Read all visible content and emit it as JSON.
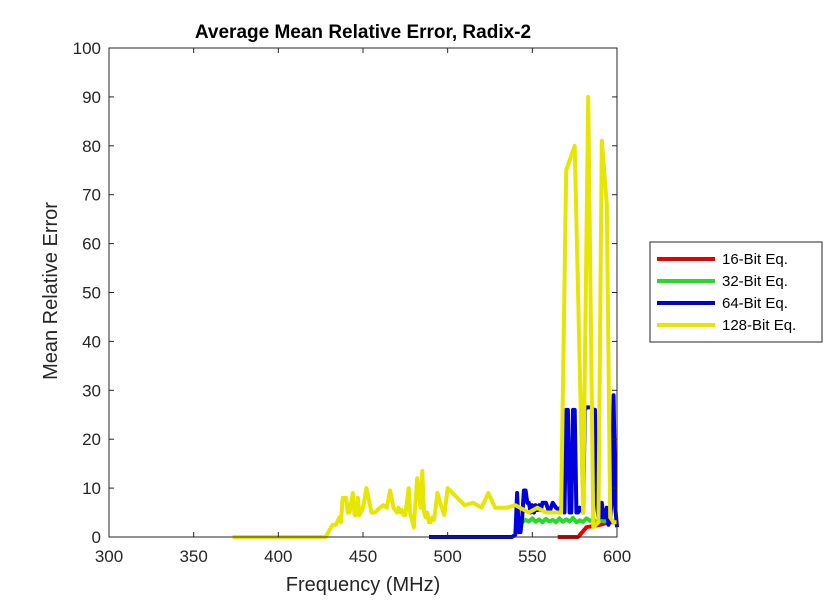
{
  "chart_data": {
    "type": "line",
    "title": "Average Mean Relative Error, Radix-2",
    "xlabel": "Frequency (MHz)",
    "ylabel": "Mean Relative Error",
    "xlim": [
      300,
      600
    ],
    "ylim": [
      0,
      100
    ],
    "xticks": [
      300,
      350,
      400,
      450,
      500,
      550,
      600
    ],
    "yticks": [
      0,
      10,
      20,
      30,
      40,
      50,
      60,
      70,
      80,
      90,
      100
    ],
    "grid": false,
    "legend_position": "outside-right",
    "series": [
      {
        "name": "16-Bit Eq.",
        "color": "#e60000",
        "x": [
          565,
          577,
          582,
          590,
          595,
          600
        ],
        "y": [
          0,
          0,
          2,
          2.5,
          3,
          3
        ]
      },
      {
        "name": "32-Bit Eq.",
        "color": "#22dd22",
        "x": [
          544,
          546,
          548,
          550,
          552,
          554,
          556,
          558,
          560,
          562,
          564,
          566,
          568,
          570,
          572,
          574,
          576,
          578,
          580,
          582,
          584,
          586,
          588,
          590,
          592,
          594,
          596,
          598,
          600
        ],
        "y": [
          3,
          3.5,
          3.2,
          3.8,
          3.1,
          3.6,
          3.0,
          3.7,
          3.2,
          3.5,
          3.0,
          3.8,
          3.1,
          3.6,
          3.2,
          3.9,
          3.0,
          3.4,
          3.1,
          3.8,
          3.3,
          3.6,
          3.0,
          3.7,
          3.2,
          3.4,
          3.6,
          3.0,
          2.9
        ]
      },
      {
        "name": "64-Bit Eq.",
        "color": "#0000dd",
        "x": [
          489,
          530,
          538,
          540,
          541,
          542,
          543,
          544,
          545,
          546,
          547,
          548,
          549,
          550,
          551,
          552,
          553,
          554,
          555,
          556,
          558,
          560,
          562,
          564,
          566,
          568,
          569,
          570,
          571,
          572,
          573,
          574,
          575,
          576,
          577,
          578,
          580,
          581,
          582,
          583,
          585,
          586,
          587,
          588,
          589,
          590,
          591,
          592,
          593,
          594,
          595,
          596,
          597,
          598,
          599,
          600
        ],
        "y": [
          0,
          0,
          0,
          0.5,
          9,
          1,
          1,
          4,
          9.5,
          9.5,
          7,
          7,
          5,
          6.5,
          5,
          6.5,
          5.5,
          6.5,
          5.5,
          7,
          7,
          5,
          7,
          6,
          5.5,
          7,
          5,
          26,
          26,
          5,
          5,
          26,
          26,
          5,
          5,
          6,
          5,
          26,
          26.5,
          26.5,
          26.5,
          26,
          26,
          7,
          4,
          4,
          7,
          4,
          4,
          6,
          2.5,
          4,
          8,
          29,
          6,
          2
        ]
      },
      {
        "name": "128-Bit Eq.",
        "color": "#e6e600",
        "x": [
          373,
          428,
          432,
          434,
          436,
          437,
          438,
          440,
          441,
          442,
          444,
          445,
          446,
          447,
          448,
          450,
          452,
          455,
          457,
          460,
          462,
          464,
          466,
          468,
          470,
          471,
          472,
          473,
          474,
          475,
          477,
          478,
          479,
          480,
          482,
          484,
          485,
          486,
          487,
          488,
          489,
          490,
          491,
          492,
          494,
          496,
          498,
          500,
          510,
          515,
          520,
          524,
          528,
          535,
          540,
          548,
          553,
          558,
          564,
          567,
          570,
          575,
          580,
          583,
          586,
          589,
          591,
          594,
          596,
          598,
          600
        ],
        "y": [
          0,
          0,
          2.5,
          2.5,
          4,
          3,
          8,
          8,
          5,
          5,
          9,
          4.5,
          4.5,
          8,
          4.5,
          6,
          10,
          5,
          5,
          6,
          6.5,
          6,
          9.5,
          6,
          5,
          6,
          5,
          5.5,
          4.5,
          4.5,
          10,
          4.5,
          3.5,
          2,
          12,
          6,
          13.5,
          5,
          4,
          5,
          3,
          3,
          4,
          3.5,
          9,
          6.5,
          4.5,
          10,
          6.5,
          7,
          6,
          9,
          6,
          6,
          6.5,
          5,
          6,
          5,
          5,
          5,
          75,
          80,
          5,
          90,
          2,
          3,
          81,
          68,
          4,
          3,
          3
        ]
      }
    ]
  }
}
